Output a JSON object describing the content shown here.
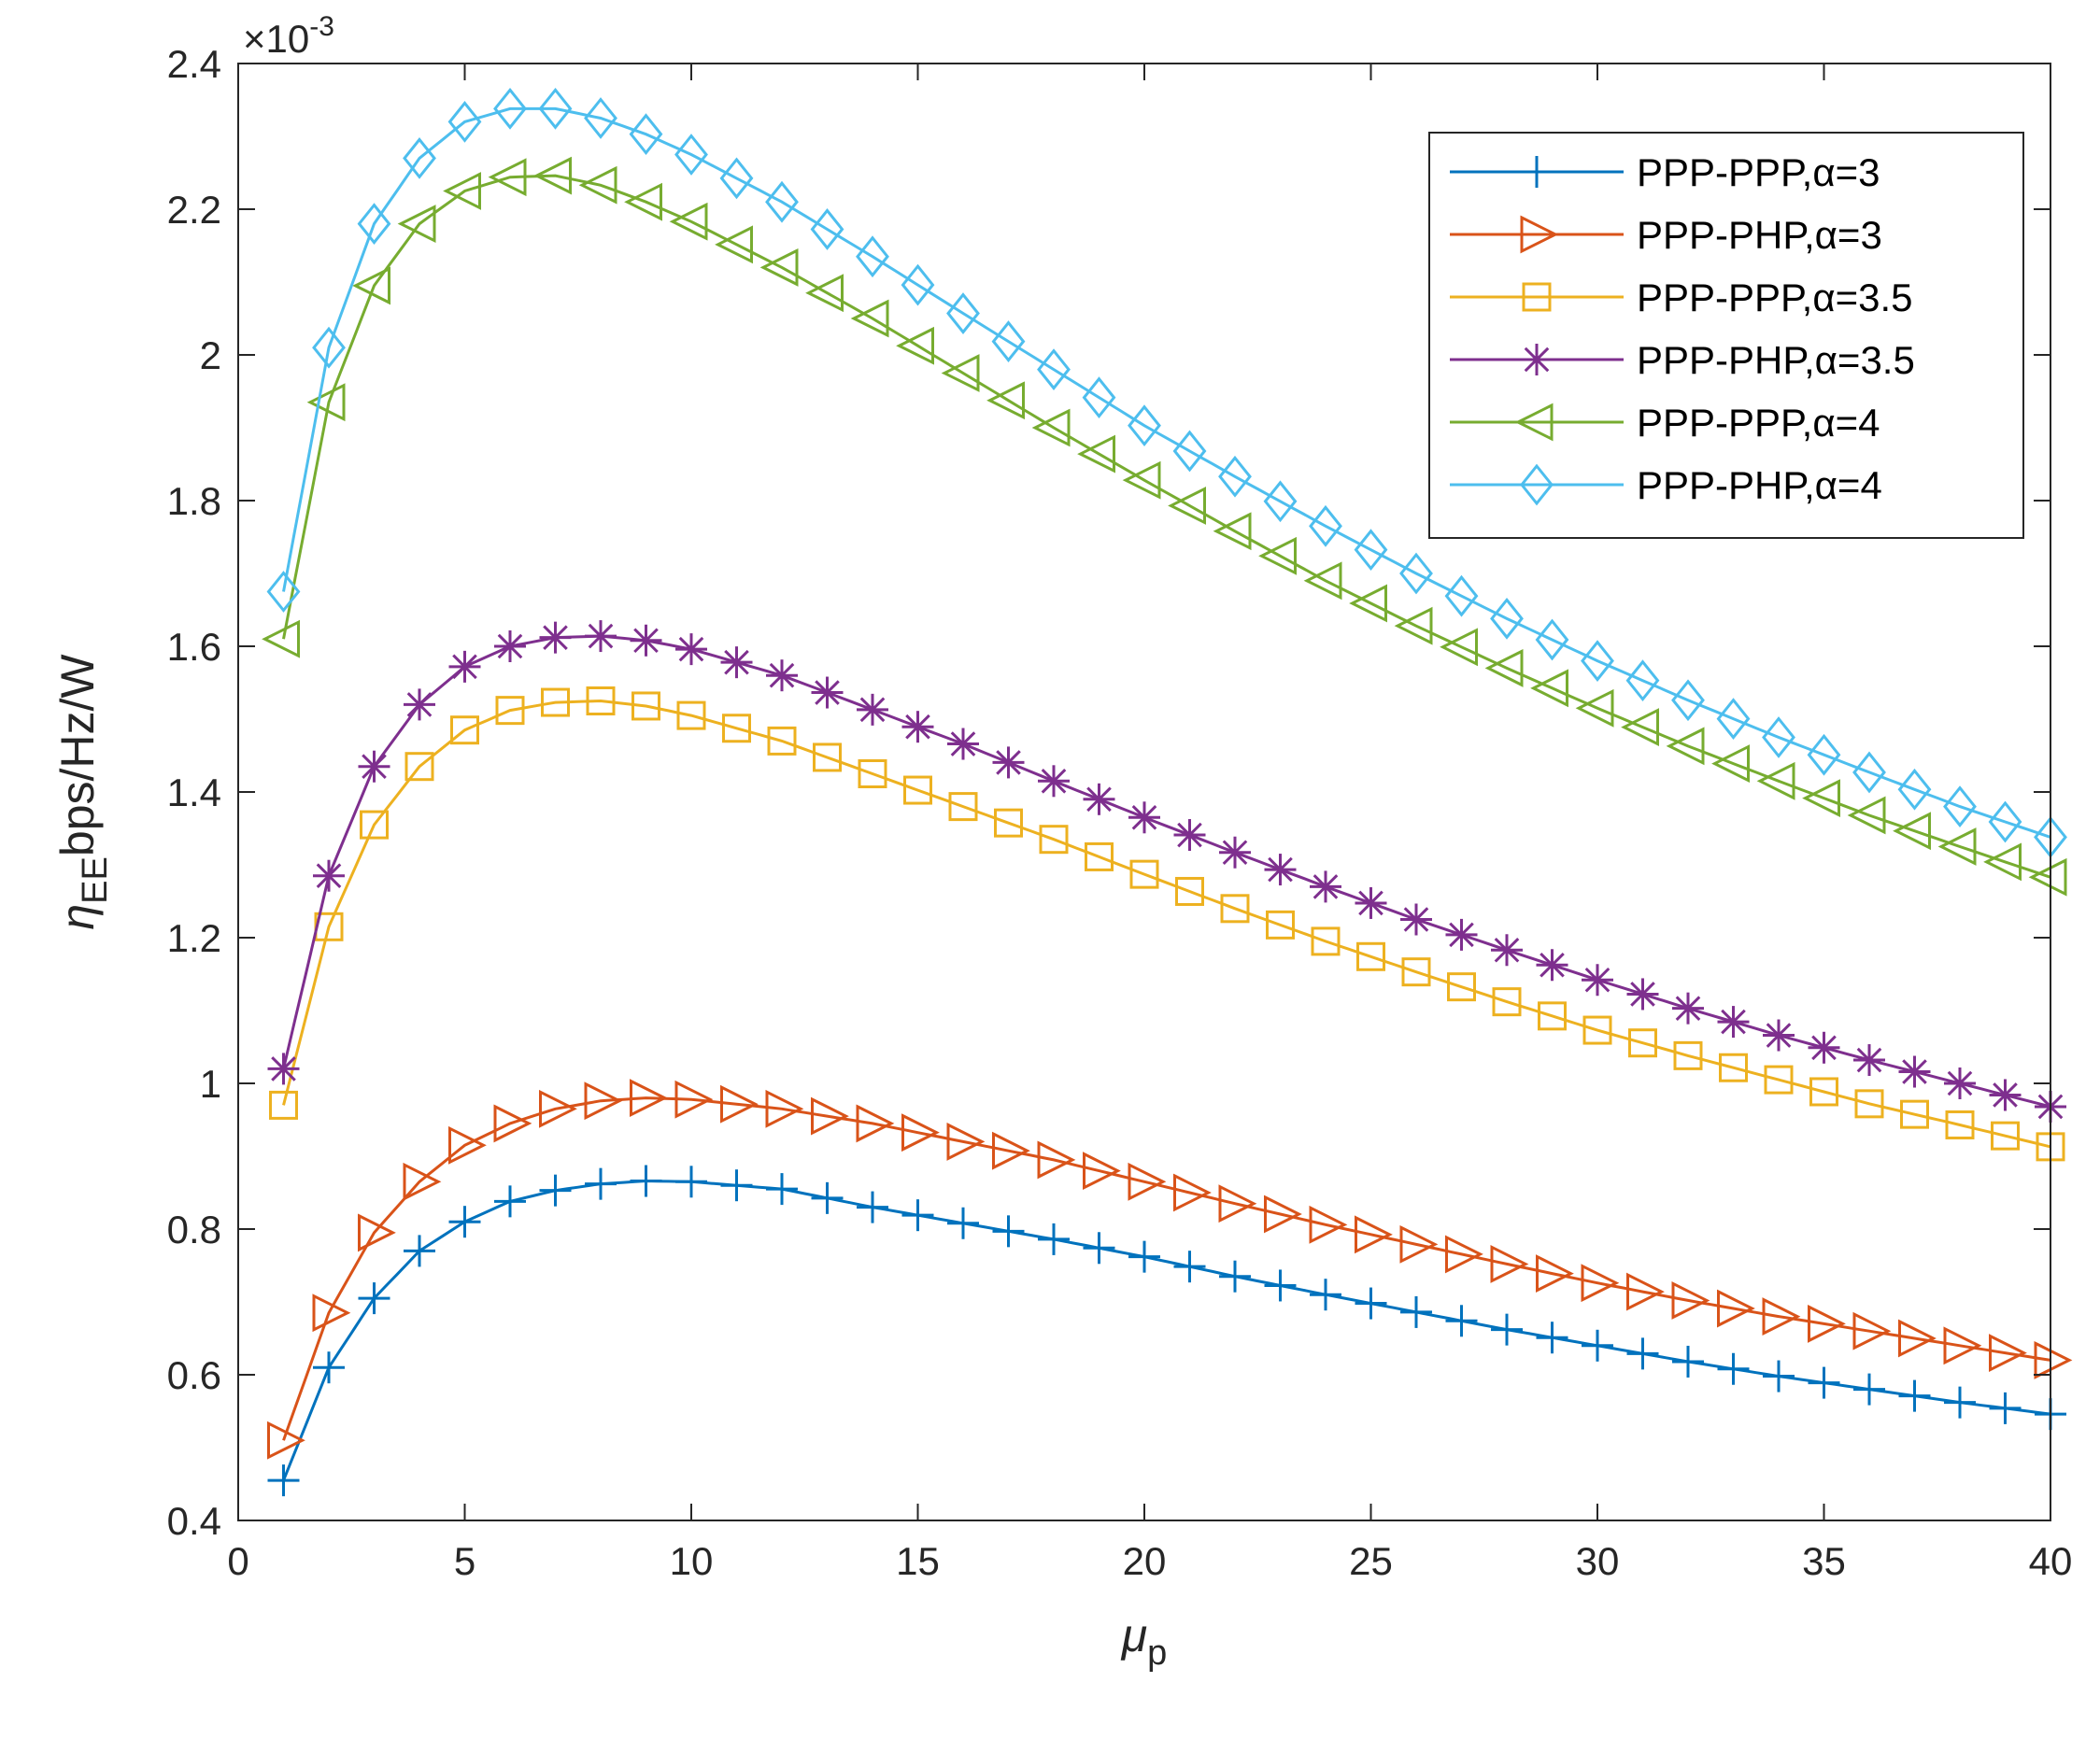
{
  "chart_data": {
    "type": "line",
    "xlabel": "μ",
    "xlabel_sub": "p",
    "ylabel": "η",
    "ylabel_sub": "EE",
    "ylabel_units": "bps/Hz/W",
    "y_exponent_label": "×10",
    "y_exponent_power": "-3",
    "xlim": [
      0,
      40
    ],
    "ylim": [
      0.4,
      2.4
    ],
    "x_ticks": [
      0,
      5,
      10,
      15,
      20,
      25,
      30,
      35,
      40
    ],
    "y_ticks": [
      0.4,
      0.6,
      0.8,
      1,
      1.2,
      1.4,
      1.6,
      1.8,
      2,
      2.2,
      2.4
    ],
    "y_tick_labels": [
      "0.4",
      "0.6",
      "0.8",
      "1",
      "1.2",
      "1.4",
      "1.6",
      "1.8",
      "2",
      "2.2",
      "2.4"
    ],
    "grid": false,
    "legend_position": "top-right",
    "series": [
      {
        "name": "PPP-PPP,α=3",
        "color": "#0072BD",
        "marker": "plus",
        "anchors": [
          [
            1,
            0.455
          ],
          [
            2,
            0.61
          ],
          [
            3,
            0.705
          ],
          [
            4,
            0.77
          ],
          [
            5,
            0.81
          ],
          [
            6,
            0.838
          ],
          [
            7,
            0.853
          ],
          [
            8,
            0.862
          ],
          [
            9,
            0.866
          ],
          [
            10,
            0.865
          ],
          [
            12,
            0.855
          ],
          [
            14,
            0.83
          ],
          [
            16,
            0.808
          ],
          [
            18,
            0.786
          ],
          [
            20,
            0.762
          ],
          [
            22,
            0.735
          ],
          [
            24,
            0.71
          ],
          [
            26,
            0.686
          ],
          [
            28,
            0.662
          ],
          [
            30,
            0.64
          ],
          [
            32,
            0.618
          ],
          [
            34,
            0.598
          ],
          [
            36,
            0.58
          ],
          [
            38,
            0.562
          ],
          [
            40,
            0.546
          ]
        ]
      },
      {
        "name": "PPP-PHP,α=3",
        "color": "#D95319",
        "marker": "triangle-right",
        "anchors": [
          [
            1,
            0.51
          ],
          [
            2,
            0.685
          ],
          [
            3,
            0.795
          ],
          [
            4,
            0.865
          ],
          [
            5,
            0.915
          ],
          [
            6,
            0.945
          ],
          [
            7,
            0.965
          ],
          [
            8,
            0.976
          ],
          [
            9,
            0.98
          ],
          [
            10,
            0.978
          ],
          [
            12,
            0.965
          ],
          [
            14,
            0.945
          ],
          [
            16,
            0.92
          ],
          [
            18,
            0.895
          ],
          [
            20,
            0.865
          ],
          [
            22,
            0.835
          ],
          [
            24,
            0.806
          ],
          [
            26,
            0.779
          ],
          [
            28,
            0.752
          ],
          [
            30,
            0.726
          ],
          [
            32,
            0.702
          ],
          [
            34,
            0.68
          ],
          [
            36,
            0.66
          ],
          [
            38,
            0.64
          ],
          [
            40,
            0.62
          ]
        ]
      },
      {
        "name": "PPP-PPP,α=3.5",
        "color": "#EDB120",
        "marker": "square",
        "anchors": [
          [
            1,
            0.97
          ],
          [
            2,
            1.215
          ],
          [
            3,
            1.355
          ],
          [
            4,
            1.435
          ],
          [
            5,
            1.485
          ],
          [
            6,
            1.512
          ],
          [
            7,
            1.523
          ],
          [
            8,
            1.525
          ],
          [
            9,
            1.518
          ],
          [
            10,
            1.505
          ],
          [
            12,
            1.47
          ],
          [
            14,
            1.425
          ],
          [
            16,
            1.38
          ],
          [
            18,
            1.335
          ],
          [
            20,
            1.287
          ],
          [
            22,
            1.24
          ],
          [
            24,
            1.195
          ],
          [
            26,
            1.153
          ],
          [
            28,
            1.112
          ],
          [
            30,
            1.073
          ],
          [
            32,
            1.038
          ],
          [
            34,
            1.005
          ],
          [
            36,
            0.972
          ],
          [
            38,
            0.943
          ],
          [
            40,
            0.913
          ]
        ]
      },
      {
        "name": "PPP-PHP,α=3.5",
        "color": "#7E2F8E",
        "marker": "asterisk",
        "anchors": [
          [
            1,
            1.02
          ],
          [
            2,
            1.285
          ],
          [
            3,
            1.435
          ],
          [
            4,
            1.52
          ],
          [
            5,
            1.572
          ],
          [
            6,
            1.6
          ],
          [
            7,
            1.612
          ],
          [
            8,
            1.614
          ],
          [
            9,
            1.608
          ],
          [
            10,
            1.596
          ],
          [
            12,
            1.56
          ],
          [
            14,
            1.513
          ],
          [
            16,
            1.466
          ],
          [
            18,
            1.415
          ],
          [
            20,
            1.365
          ],
          [
            22,
            1.317
          ],
          [
            24,
            1.27
          ],
          [
            26,
            1.225
          ],
          [
            28,
            1.183
          ],
          [
            30,
            1.142
          ],
          [
            32,
            1.103
          ],
          [
            34,
            1.066
          ],
          [
            36,
            1.032
          ],
          [
            38,
            1.0
          ],
          [
            40,
            0.968
          ]
        ]
      },
      {
        "name": "PPP-PPP,α=4",
        "color": "#77AC30",
        "marker": "triangle-left",
        "anchors": [
          [
            1,
            1.61
          ],
          [
            2,
            1.935
          ],
          [
            3,
            2.095
          ],
          [
            4,
            2.18
          ],
          [
            5,
            2.225
          ],
          [
            6,
            2.244
          ],
          [
            7,
            2.246
          ],
          [
            8,
            2.233
          ],
          [
            9,
            2.21
          ],
          [
            10,
            2.183
          ],
          [
            12,
            2.12
          ],
          [
            14,
            2.05
          ],
          [
            16,
            1.975
          ],
          [
            18,
            1.9
          ],
          [
            20,
            1.828
          ],
          [
            22,
            1.758
          ],
          [
            24,
            1.69
          ],
          [
            26,
            1.628
          ],
          [
            28,
            1.57
          ],
          [
            30,
            1.515
          ],
          [
            32,
            1.463
          ],
          [
            34,
            1.415
          ],
          [
            36,
            1.368
          ],
          [
            38,
            1.325
          ],
          [
            40,
            1.283
          ]
        ]
      },
      {
        "name": "PPP-PHP,α=4",
        "color": "#4DBEEE",
        "marker": "diamond",
        "anchors": [
          [
            1,
            1.675
          ],
          [
            2,
            2.01
          ],
          [
            3,
            2.18
          ],
          [
            4,
            2.27
          ],
          [
            5,
            2.32
          ],
          [
            6,
            2.338
          ],
          [
            7,
            2.338
          ],
          [
            8,
            2.325
          ],
          [
            9,
            2.303
          ],
          [
            10,
            2.275
          ],
          [
            12,
            2.21
          ],
          [
            14,
            2.135
          ],
          [
            16,
            2.057
          ],
          [
            18,
            1.98
          ],
          [
            20,
            1.903
          ],
          [
            22,
            1.833
          ],
          [
            24,
            1.765
          ],
          [
            26,
            1.7
          ],
          [
            28,
            1.638
          ],
          [
            30,
            1.58
          ],
          [
            32,
            1.526
          ],
          [
            34,
            1.475
          ],
          [
            36,
            1.427
          ],
          [
            38,
            1.38
          ],
          [
            40,
            1.338
          ]
        ]
      }
    ]
  }
}
